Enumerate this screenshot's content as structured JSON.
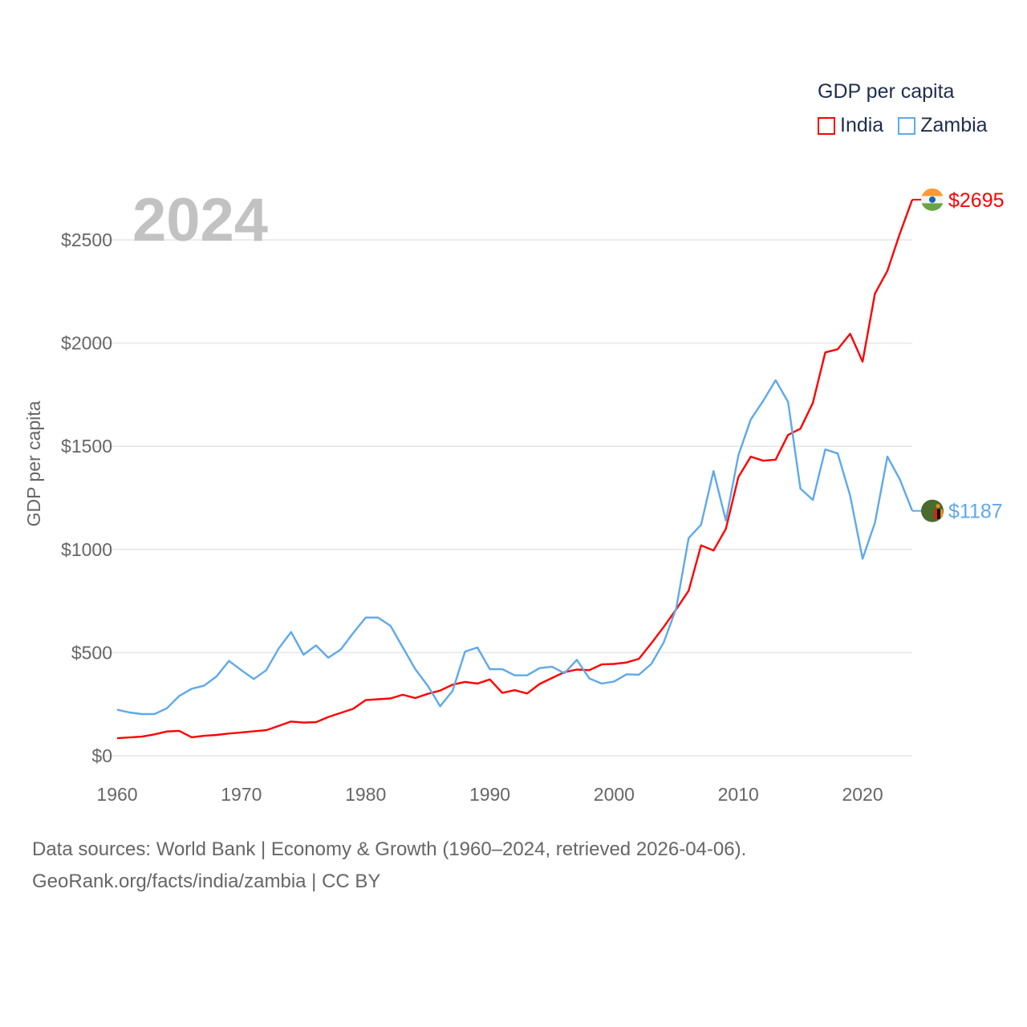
{
  "chart_data": {
    "type": "line",
    "title": "GDP per capita",
    "year_label": "2024",
    "xlabel": "",
    "ylabel": "GDP per capita",
    "xlim": [
      1960,
      2024
    ],
    "ylim": [
      0,
      2700
    ],
    "x_ticks": [
      1960,
      1970,
      1980,
      1990,
      2000,
      2010,
      2020
    ],
    "x_tick_labels": [
      "1960",
      "1970",
      "1980",
      "1990",
      "2000",
      "2010",
      "2020"
    ],
    "y_ticks": [
      0,
      500,
      1000,
      1500,
      2000,
      2500
    ],
    "y_tick_labels": [
      "$0",
      "$500",
      "$1000",
      "$1500",
      "$2000",
      "$2500"
    ],
    "grid": true,
    "legend_placement": "top-right",
    "x": [
      1960,
      1961,
      1962,
      1963,
      1964,
      1965,
      1966,
      1967,
      1968,
      1969,
      1970,
      1971,
      1972,
      1973,
      1974,
      1975,
      1976,
      1977,
      1978,
      1979,
      1980,
      1981,
      1982,
      1983,
      1984,
      1985,
      1986,
      1987,
      1988,
      1989,
      1990,
      1991,
      1992,
      1993,
      1994,
      1995,
      1996,
      1997,
      1998,
      1999,
      2000,
      2001,
      2002,
      2003,
      2004,
      2005,
      2006,
      2007,
      2008,
      2009,
      2010,
      2011,
      2012,
      2013,
      2014,
      2015,
      2016,
      2017,
      2018,
      2019,
      2020,
      2021,
      2022,
      2023,
      2024
    ],
    "series": [
      {
        "name": "India",
        "color": "#ff0000",
        "end_label": "$2695",
        "values": [
          85,
          89,
          93,
          104,
          118,
          121,
          90,
          97,
          101,
          108,
          113,
          119,
          124,
          145,
          166,
          161,
          163,
          188,
          208,
          228,
          270,
          274,
          278,
          296,
          280,
          300,
          316,
          345,
          358,
          350,
          370,
          305,
          318,
          302,
          348,
          377,
          405,
          418,
          415,
          443,
          445,
          452,
          470,
          545,
          625,
          710,
          800,
          1020,
          995,
          1100,
          1350,
          1450,
          1430,
          1435,
          1555,
          1585,
          1710,
          1955,
          1970,
          2045,
          1910,
          2240,
          2350,
          2530,
          2695
        ]
      },
      {
        "name": "Zambia",
        "color": "#5ea9ea",
        "end_label": "$1187",
        "values": [
          223,
          210,
          202,
          202,
          230,
          290,
          325,
          340,
          385,
          460,
          415,
          372,
          415,
          520,
          600,
          490,
          535,
          475,
          515,
          595,
          670,
          670,
          630,
          525,
          420,
          340,
          240,
          315,
          505,
          525,
          420,
          420,
          390,
          390,
          425,
          432,
          400,
          465,
          375,
          350,
          360,
          395,
          393,
          445,
          550,
          715,
          1055,
          1120,
          1380,
          1140,
          1455,
          1630,
          1720,
          1820,
          1715,
          1295,
          1240,
          1485,
          1465,
          1260,
          955,
          1130,
          1450,
          1340,
          1187
        ]
      }
    ]
  },
  "legend": {
    "title": "GDP per capita",
    "items": [
      "India",
      "Zambia"
    ]
  },
  "footer": {
    "line1": "Data sources: World Bank | Economy & Growth (1960–2024, retrieved 2026-04-06).",
    "line2": "GeoRank.org/facts/india/zambia | CC BY"
  }
}
